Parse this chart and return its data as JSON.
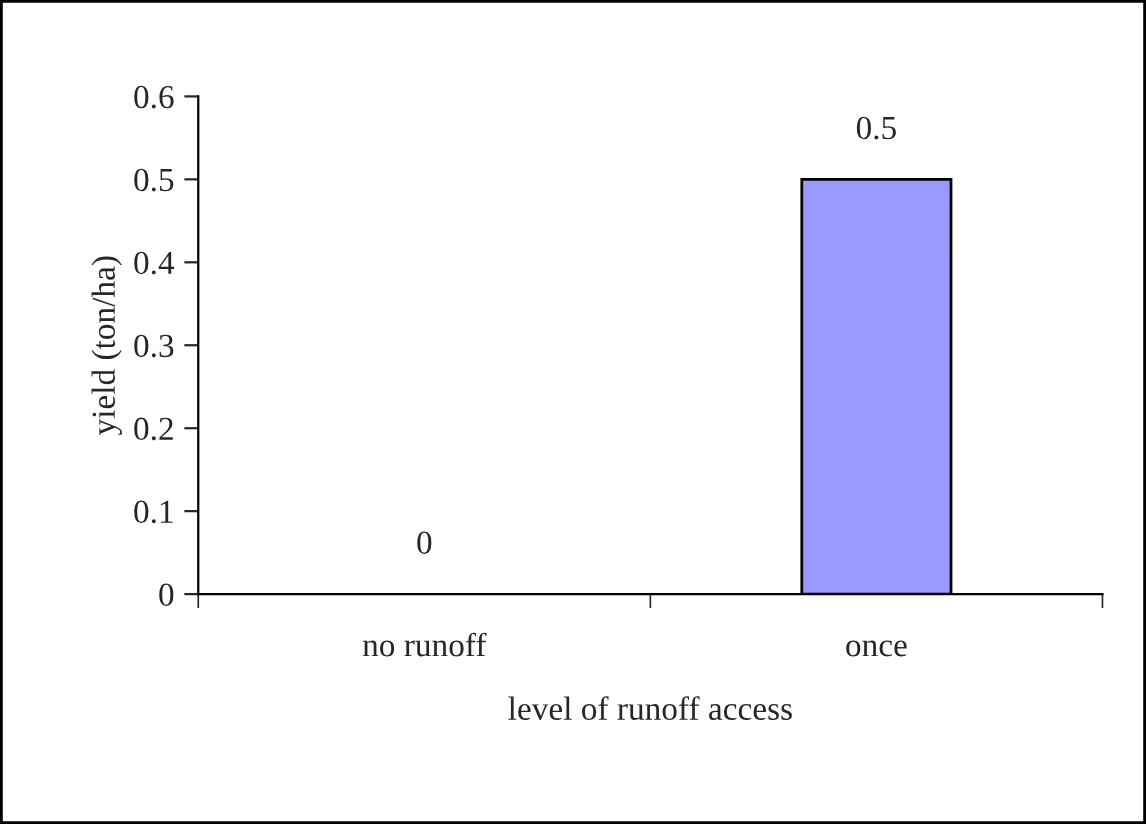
{
  "chart_data": {
    "type": "bar",
    "xlabel": "level of runoff access",
    "ylabel": "yield (ton/ha)",
    "categories": [
      "no runoff",
      "once"
    ],
    "values": [
      0,
      0.5
    ],
    "color": "#9999ff",
    "ylim": [
      0,
      0.6
    ],
    "yticks": [
      0,
      0.1,
      0.2,
      0.3,
      0.4,
      0.5,
      0.6
    ],
    "grid": false,
    "data_labels": true,
    "legend": false
  }
}
